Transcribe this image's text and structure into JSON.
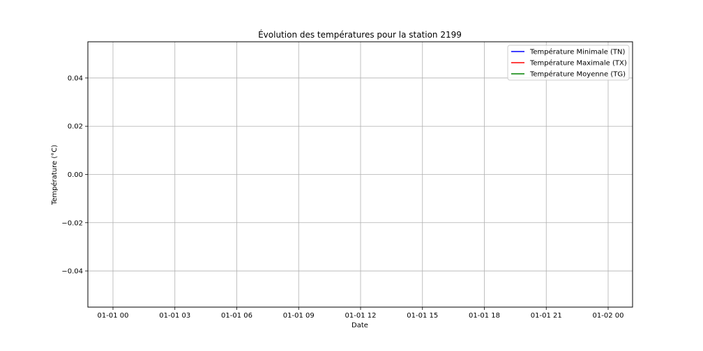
{
  "chart_data": {
    "type": "line",
    "title": "Évolution des températures pour la station 2199",
    "xlabel": "Date",
    "ylabel": "Température (°C)",
    "x_ticks": [
      "01-01 00",
      "01-01 03",
      "01-01 06",
      "01-01 09",
      "01-01 12",
      "01-01 15",
      "01-01 18",
      "01-01 21",
      "01-02 00"
    ],
    "y_ticks": [
      0.04,
      0.02,
      0.0,
      -0.02,
      -0.04
    ],
    "y_tick_labels": [
      "0.04",
      "0.02",
      "0.00",
      "−0.02",
      "−0.04"
    ],
    "ylim": [
      -0.055,
      0.055
    ],
    "grid": true,
    "legend_position": "top-right",
    "series": [
      {
        "name": "Température Minimale (TN)",
        "color": "#0000ff",
        "values": []
      },
      {
        "name": "Température Maximale (TX)",
        "color": "#ff0000",
        "values": []
      },
      {
        "name": "Température Moyenne (TG)",
        "color": "#008000",
        "values": []
      }
    ]
  }
}
